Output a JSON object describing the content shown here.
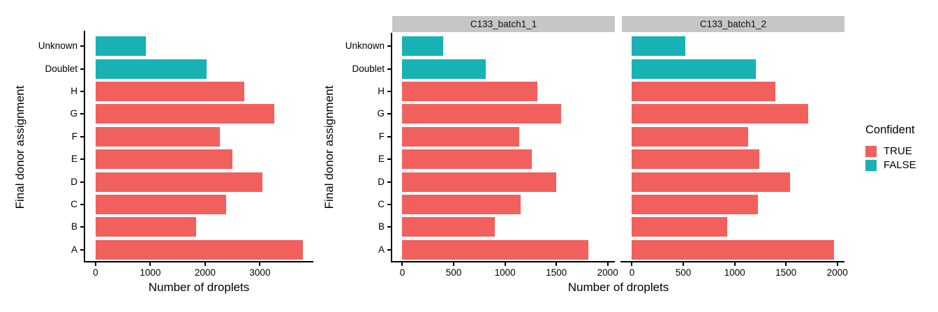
{
  "colors": {
    "confident_true": "#F2605D",
    "confident_false": "#18B2B5",
    "strip_bg": "#C6C6C6",
    "axis": "#000000"
  },
  "legend": {
    "title": "Confident",
    "items": [
      {
        "label": "TRUE",
        "key": "confident_true"
      },
      {
        "label": "FALSE",
        "key": "confident_false"
      }
    ]
  },
  "chart_data": [
    {
      "type": "bar",
      "orientation": "horizontal",
      "facet_label": null,
      "xlabel": "Number of droplets",
      "ylabel": "Final donor assignment",
      "categories": [
        "Unknown",
        "Doublet",
        "H",
        "G",
        "F",
        "E",
        "D",
        "C",
        "B",
        "A"
      ],
      "values": [
        920,
        2025,
        2710,
        3260,
        2270,
        2500,
        3040,
        2385,
        1830,
        3785
      ],
      "confident": [
        "FALSE",
        "FALSE",
        "TRUE",
        "TRUE",
        "TRUE",
        "TRUE",
        "TRUE",
        "TRUE",
        "TRUE",
        "TRUE"
      ],
      "xticks": [
        0,
        1000,
        2000,
        3000
      ],
      "xlim": [
        0,
        3975
      ],
      "grid": false,
      "legend_position": "none"
    },
    {
      "type": "bar",
      "orientation": "horizontal",
      "facet_label": "C133_batch1_1",
      "xlabel": "Number of droplets",
      "ylabel": "Final donor assignment",
      "categories": [
        "Unknown",
        "Doublet",
        "H",
        "G",
        "F",
        "E",
        "D",
        "C",
        "B",
        "A"
      ],
      "values": [
        400,
        815,
        1315,
        1545,
        1140,
        1260,
        1500,
        1155,
        900,
        1815
      ],
      "confident": [
        "FALSE",
        "FALSE",
        "TRUE",
        "TRUE",
        "TRUE",
        "TRUE",
        "TRUE",
        "TRUE",
        "TRUE",
        "TRUE"
      ],
      "xticks": [
        0,
        500,
        1000,
        1500,
        2000
      ],
      "xlim": [
        0,
        2070
      ],
      "grid": false,
      "legend_position": "right"
    },
    {
      "type": "bar",
      "orientation": "horizontal",
      "facet_label": "C133_batch1_2",
      "xlabel": "Number of droplets",
      "ylabel": "Final donor assignment",
      "categories": [
        "Unknown",
        "Doublet",
        "H",
        "G",
        "F",
        "E",
        "D",
        "C",
        "B",
        "A"
      ],
      "values": [
        520,
        1210,
        1395,
        1715,
        1130,
        1240,
        1540,
        1230,
        930,
        1970
      ],
      "confident": [
        "FALSE",
        "FALSE",
        "TRUE",
        "TRUE",
        "TRUE",
        "TRUE",
        "TRUE",
        "TRUE",
        "TRUE",
        "TRUE"
      ],
      "xticks": [
        0,
        500,
        1000,
        1500,
        2000
      ],
      "xlim": [
        0,
        2070
      ],
      "grid": false,
      "legend_position": "right"
    }
  ]
}
